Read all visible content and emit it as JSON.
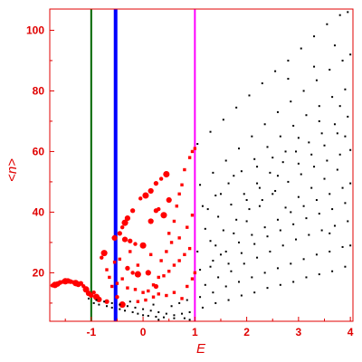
{
  "chart_data": {
    "type": "scatter",
    "xlabel": "E",
    "ylabel": "<n>",
    "xlim": [
      -1.8,
      4.05
    ],
    "ylim": [
      4,
      107
    ],
    "x_ticks": [
      -1,
      0,
      1,
      2,
      3,
      4
    ],
    "y_ticks": [
      20,
      40,
      60,
      80,
      100
    ],
    "x_tick_labels": [
      "-1",
      "0",
      "1",
      "2",
      "3",
      "4"
    ],
    "y_tick_labels": [
      "20",
      "40",
      "60",
      "80",
      "100"
    ],
    "axis_color": "#e00000",
    "vertical_lines": [
      {
        "x": -1.0,
        "color": "#006400",
        "label": ""
      },
      {
        "x": -0.53,
        "color": "#0000ff",
        "label": ""
      },
      {
        "x": 1.0,
        "color": "#ff00ff",
        "label": ""
      }
    ],
    "series": [
      {
        "color": "#ff0000",
        "kind": "large",
        "points": [
          [
            -1.75,
            15.8
          ],
          [
            -1.7,
            16.0
          ],
          [
            -1.65,
            16.3
          ],
          [
            -1.6,
            16.8
          ],
          [
            -1.55,
            17.0
          ],
          [
            -1.5,
            17.2
          ],
          [
            -1.45,
            17.3
          ],
          [
            -1.4,
            17.1
          ],
          [
            -1.35,
            16.9
          ],
          [
            -1.3,
            16.6
          ],
          [
            -1.25,
            16.2
          ],
          [
            -1.2,
            16.5
          ],
          [
            -1.15,
            15.6
          ],
          [
            -1.1,
            14.5
          ],
          [
            -1.05,
            13.2
          ],
          [
            -1.0,
            12.5
          ],
          [
            -0.95,
            13.5
          ],
          [
            -0.9,
            12.0
          ],
          [
            -0.85,
            11.2
          ],
          [
            -0.7,
            10.5
          ],
          [
            -0.8,
            25.0
          ],
          [
            -0.75,
            26.5
          ],
          [
            -0.55,
            31.5
          ],
          [
            -0.45,
            33.0
          ],
          [
            -0.4,
            35.0
          ],
          [
            -0.35,
            36.5
          ],
          [
            -0.3,
            38.0
          ],
          [
            -0.2,
            40.5
          ],
          [
            -0.05,
            44.5
          ],
          [
            0.05,
            45.5
          ],
          [
            0.15,
            47.0
          ],
          [
            0.25,
            49.5
          ],
          [
            0.35,
            51.0
          ],
          [
            0.45,
            52.5
          ],
          [
            -0.35,
            31.0
          ],
          [
            -0.25,
            30.5
          ],
          [
            -0.15,
            29.5
          ],
          [
            0.0,
            29.0
          ],
          [
            0.15,
            37.0
          ],
          [
            0.25,
            40.5
          ],
          [
            0.3,
            41.0
          ],
          [
            0.4,
            39.0
          ],
          [
            0.5,
            44.0
          ],
          [
            -0.3,
            21.5
          ],
          [
            -0.2,
            20.0
          ],
          [
            -0.1,
            19.5
          ],
          [
            0.1,
            20.0
          ],
          [
            0.25,
            15.5
          ],
          [
            -0.5,
            12.0
          ],
          [
            -0.4,
            9.5
          ]
        ]
      },
      {
        "color": "#ff0000",
        "kind": "small",
        "points": [
          [
            -0.6,
            15.5
          ],
          [
            -0.5,
            16.5
          ],
          [
            -0.4,
            18.0
          ],
          [
            -0.3,
            15.0
          ],
          [
            -0.15,
            14.5
          ],
          [
            0.0,
            13.5
          ],
          [
            0.1,
            14.0
          ],
          [
            0.2,
            16.0
          ],
          [
            0.3,
            18.5
          ],
          [
            0.4,
            19.0
          ],
          [
            0.5,
            20.5
          ],
          [
            0.6,
            22.5
          ],
          [
            0.7,
            24.0
          ],
          [
            0.8,
            26.0
          ],
          [
            0.9,
            28.0
          ],
          [
            0.5,
            33.0
          ],
          [
            0.6,
            37.0
          ],
          [
            0.65,
            42.0
          ],
          [
            0.7,
            46.0
          ],
          [
            0.75,
            49.0
          ],
          [
            0.8,
            54.0
          ],
          [
            0.9,
            58.0
          ],
          [
            0.95,
            60.0
          ],
          [
            1.0,
            61.0
          ],
          [
            0.35,
            24.0
          ],
          [
            0.45,
            27.0
          ],
          [
            0.55,
            30.0
          ],
          [
            0.7,
            31.5
          ],
          [
            0.85,
            35.0
          ],
          [
            0.95,
            39.0
          ],
          [
            -0.1,
            10.5
          ],
          [
            0.05,
            11.0
          ],
          [
            0.2,
            12.0
          ],
          [
            0.3,
            13.0
          ],
          [
            0.45,
            12.5
          ],
          [
            0.6,
            13.5
          ],
          [
            0.75,
            11.5
          ],
          [
            0.85,
            15.5
          ],
          [
            0.95,
            18.0
          ],
          [
            1.0,
            20.0
          ],
          [
            -0.65,
            18.5
          ],
          [
            -0.7,
            21.0
          ],
          [
            -0.55,
            23.5
          ],
          [
            -0.45,
            24.5
          ],
          [
            -0.25,
            27.0
          ],
          [
            -0.1,
            22.5
          ],
          [
            0.15,
            26.0
          ]
        ]
      },
      {
        "color": "#000000",
        "kind": "dot",
        "points": [
          [
            1.05,
            62.5
          ],
          [
            1.3,
            66.5
          ],
          [
            1.55,
            70.5
          ],
          [
            1.8,
            74.5
          ],
          [
            2.05,
            78.5
          ],
          [
            2.3,
            82.5
          ],
          [
            2.55,
            86.5
          ],
          [
            2.8,
            90.0
          ],
          [
            3.05,
            94.0
          ],
          [
            3.3,
            98.0
          ],
          [
            3.55,
            102.0
          ],
          [
            3.8,
            105.0
          ],
          [
            3.95,
            106.0
          ],
          [
            1.1,
            49.0
          ],
          [
            1.35,
            53.0
          ],
          [
            1.6,
            57.0
          ],
          [
            1.85,
            61.0
          ],
          [
            2.1,
            65.0
          ],
          [
            2.35,
            69.0
          ],
          [
            2.6,
            73.0
          ],
          [
            2.85,
            76.5
          ],
          [
            3.1,
            80.0
          ],
          [
            3.35,
            83.5
          ],
          [
            3.6,
            87.0
          ],
          [
            3.85,
            90.0
          ],
          [
            4.0,
            92.0
          ],
          [
            1.15,
            42.0
          ],
          [
            1.4,
            45.5
          ],
          [
            1.65,
            49.5
          ],
          [
            1.9,
            53.5
          ],
          [
            2.15,
            57.5
          ],
          [
            2.4,
            61.5
          ],
          [
            2.65,
            65.0
          ],
          [
            2.9,
            68.5
          ],
          [
            3.15,
            72.0
          ],
          [
            3.4,
            75.0
          ],
          [
            3.65,
            78.0
          ],
          [
            3.9,
            80.5
          ],
          [
            1.2,
            34.5
          ],
          [
            1.45,
            38.5
          ],
          [
            1.7,
            42.5
          ],
          [
            1.95,
            46.0
          ],
          [
            2.2,
            49.5
          ],
          [
            2.45,
            53.0
          ],
          [
            2.7,
            56.5
          ],
          [
            2.95,
            60.0
          ],
          [
            3.2,
            63.0
          ],
          [
            3.45,
            66.0
          ],
          [
            3.7,
            69.0
          ],
          [
            3.95,
            71.5
          ],
          [
            1.05,
            27.0
          ],
          [
            1.3,
            30.5
          ],
          [
            1.55,
            34.0
          ],
          [
            1.8,
            37.5
          ],
          [
            2.05,
            41.0
          ],
          [
            2.3,
            44.0
          ],
          [
            2.55,
            47.0
          ],
          [
            2.8,
            50.0
          ],
          [
            3.05,
            52.5
          ],
          [
            3.3,
            55.0
          ],
          [
            3.55,
            57.0
          ],
          [
            3.8,
            59.0
          ],
          [
            4.0,
            60.5
          ],
          [
            1.1,
            21.0
          ],
          [
            1.35,
            24.0
          ],
          [
            1.6,
            27.0
          ],
          [
            1.85,
            30.0
          ],
          [
            2.1,
            32.5
          ],
          [
            2.35,
            35.0
          ],
          [
            2.6,
            37.5
          ],
          [
            2.85,
            40.0
          ],
          [
            3.1,
            42.0
          ],
          [
            3.35,
            44.0
          ],
          [
            3.6,
            46.0
          ],
          [
            3.85,
            48.0
          ],
          [
            4.0,
            49.5
          ],
          [
            1.2,
            16.0
          ],
          [
            1.45,
            18.5
          ],
          [
            1.7,
            20.5
          ],
          [
            1.95,
            23.0
          ],
          [
            2.2,
            25.0
          ],
          [
            2.45,
            27.0
          ],
          [
            2.7,
            29.0
          ],
          [
            2.95,
            31.0
          ],
          [
            3.2,
            32.5
          ],
          [
            3.45,
            34.0
          ],
          [
            3.7,
            35.5
          ],
          [
            3.95,
            37.0
          ],
          [
            1.1,
            12.0
          ],
          [
            1.35,
            13.5
          ],
          [
            1.6,
            15.5
          ],
          [
            1.85,
            17.0
          ],
          [
            2.1,
            18.5
          ],
          [
            2.35,
            20.0
          ],
          [
            2.6,
            21.5
          ],
          [
            2.85,
            23.0
          ],
          [
            3.1,
            24.5
          ],
          [
            3.35,
            26.0
          ],
          [
            3.6,
            27.0
          ],
          [
            3.85,
            28.5
          ],
          [
            4.0,
            29.0
          ],
          [
            1.15,
            8.5
          ],
          [
            1.4,
            10.0
          ],
          [
            1.65,
            11.0
          ],
          [
            1.9,
            12.5
          ],
          [
            2.15,
            13.5
          ],
          [
            2.4,
            15.0
          ],
          [
            2.65,
            16.0
          ],
          [
            2.9,
            17.0
          ],
          [
            3.15,
            18.5
          ],
          [
            3.4,
            19.5
          ],
          [
            3.65,
            20.5
          ],
          [
            3.9,
            22.0
          ],
          [
            1.3,
            22.0
          ],
          [
            1.5,
            26.0
          ],
          [
            1.75,
            33.0
          ],
          [
            2.0,
            37.0
          ],
          [
            2.25,
            42.0
          ],
          [
            2.5,
            46.0
          ],
          [
            2.75,
            41.5
          ],
          [
            3.0,
            45.0
          ],
          [
            3.25,
            48.0
          ],
          [
            3.5,
            51.0
          ],
          [
            3.75,
            54.0
          ],
          [
            1.25,
            41.0
          ],
          [
            1.5,
            46.0
          ],
          [
            1.75,
            52.0
          ],
          [
            2.0,
            44.0
          ],
          [
            2.25,
            48.0
          ],
          [
            2.5,
            58.0
          ],
          [
            2.75,
            60.0
          ],
          [
            3.0,
            64.5
          ],
          [
            3.25,
            59.0
          ],
          [
            3.5,
            62.0
          ],
          [
            3.75,
            66.0
          ],
          [
            1.4,
            29.0
          ],
          [
            1.65,
            23.0
          ],
          [
            1.9,
            26.5
          ],
          [
            2.15,
            29.5
          ],
          [
            2.4,
            32.0
          ],
          [
            2.65,
            34.0
          ],
          [
            2.9,
            36.0
          ],
          [
            3.15,
            38.0
          ],
          [
            3.4,
            39.5
          ],
          [
            3.65,
            41.0
          ],
          [
            3.9,
            43.0
          ],
          [
            2.2,
            55.0
          ],
          [
            2.6,
            52.0
          ],
          [
            3.0,
            56.0
          ],
          [
            3.4,
            70.0
          ],
          [
            3.8,
            75.0
          ],
          [
            3.3,
            88.0
          ],
          [
            3.7,
            95.0
          ],
          [
            2.8,
            84.0
          ],
          [
            3.9,
            65.0
          ],
          [
            3.6,
            33.0
          ],
          [
            -1.05,
            11.5
          ],
          [
            -0.95,
            10.0
          ],
          [
            -0.85,
            9.5
          ],
          [
            -0.7,
            9.0
          ],
          [
            -0.6,
            8.5
          ],
          [
            -0.45,
            8.0
          ],
          [
            -0.35,
            7.5
          ],
          [
            -0.2,
            7.0
          ],
          [
            -0.1,
            6.5
          ],
          [
            0.0,
            6.0
          ],
          [
            0.1,
            5.8
          ],
          [
            0.25,
            5.5
          ],
          [
            0.4,
            5.3
          ],
          [
            0.6,
            5.0
          ],
          [
            0.8,
            5.0
          ],
          [
            -0.9,
            11.0
          ],
          [
            -0.75,
            10.5
          ],
          [
            -0.6,
            10.0
          ],
          [
            -0.45,
            9.5
          ],
          [
            -0.3,
            9.0
          ],
          [
            -0.15,
            8.5
          ],
          [
            0.0,
            8.0
          ],
          [
            0.15,
            7.5
          ],
          [
            0.3,
            7.0
          ],
          [
            0.45,
            6.5
          ],
          [
            0.6,
            6.0
          ],
          [
            0.75,
            6.5
          ],
          [
            0.9,
            7.0
          ],
          [
            0.55,
            9.0
          ],
          [
            0.7,
            10.0
          ],
          [
            0.85,
            11.0
          ],
          [
            0.3,
            4.5
          ],
          [
            0.9,
            4.5
          ],
          [
            -0.25,
            10.5
          ],
          [
            0.2,
            9.5
          ]
        ]
      }
    ]
  }
}
